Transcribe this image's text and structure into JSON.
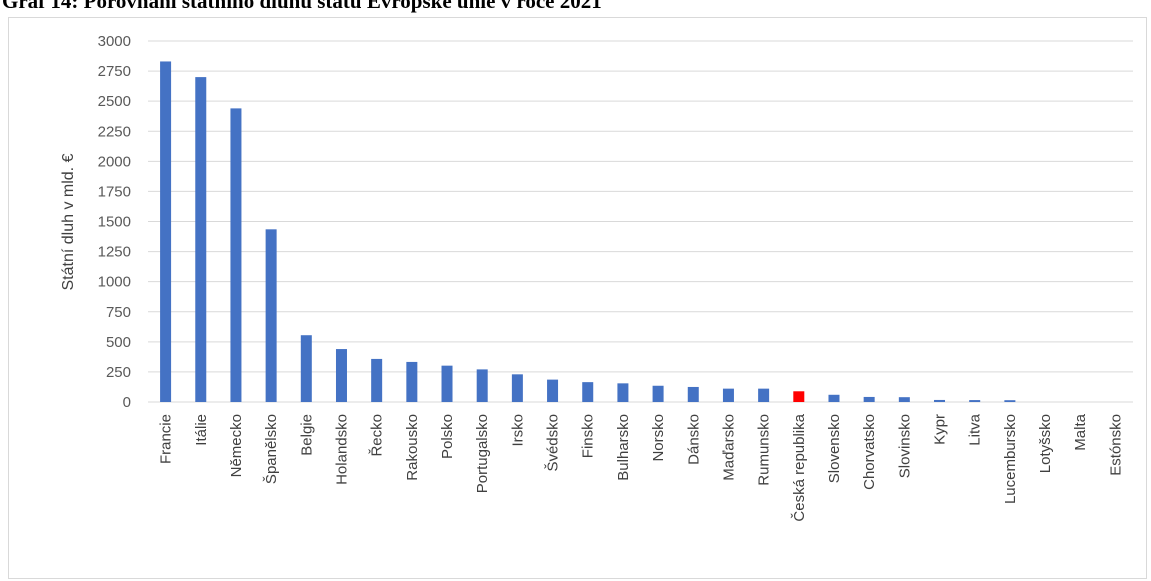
{
  "title": "Graf 14: Porovnání státního dluhu států Evropské unie v roce 2021",
  "chart_data": {
    "type": "bar",
    "title": "Graf 14: Porovnání státního dluhu států Evropské unie v roce 2021",
    "xlabel": "",
    "ylabel": "Státní dluh v mld. €",
    "ylim": [
      0,
      3000
    ],
    "yticks": [
      0,
      250,
      500,
      750,
      1000,
      1250,
      1500,
      1750,
      2000,
      2250,
      2500,
      2750,
      3000
    ],
    "grid": true,
    "legend": "none",
    "categories": [
      "Francie",
      "Itálie",
      "Německo",
      "Španělsko",
      "Belgie",
      "Holandsko",
      "Řecko",
      "Rakousko",
      "Polsko",
      "Portugalsko",
      "Irsko",
      "Švédsko",
      "Finsko",
      "Bulharsko",
      "Norsko",
      "Dánsko",
      "Maďarsko",
      "Rumunsko",
      "Česká republika",
      "Slovensko",
      "Chorvatsko",
      "Slovinsko",
      "Kypr",
      "Litva",
      "Lucembursko",
      "Lotyšsko",
      "Malta",
      "Estónsko"
    ],
    "values": [
      2830,
      2700,
      2440,
      1435,
      555,
      440,
      358,
      333,
      302,
      271,
      230,
      186,
      165,
      155,
      135,
      125,
      111,
      111,
      89,
      60,
      42,
      40,
      17,
      16,
      15,
      0,
      0,
      0
    ],
    "colors": {
      "default": "#4472c4",
      "highlight": "#ff0000"
    },
    "highlight_category": "Česká republika"
  }
}
